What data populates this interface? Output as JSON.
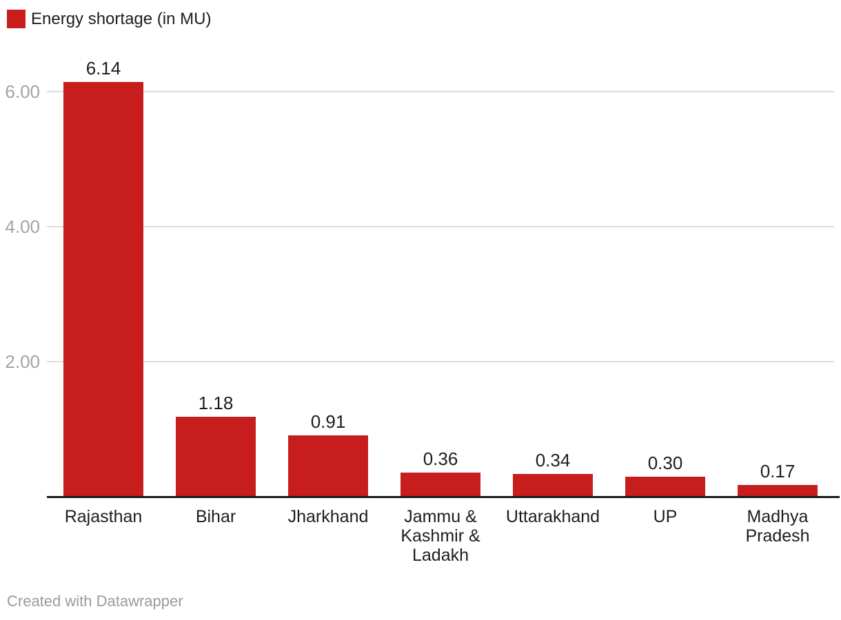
{
  "legend": {
    "swatch_color": "#c71e1d",
    "label": "Energy shortage (in MU)"
  },
  "footer": {
    "credit": "Created with Datawrapper"
  },
  "chart_data": {
    "type": "bar",
    "title": "Energy shortage (in MU)",
    "categories": [
      "Rajasthan",
      "Bihar",
      "Jharkhand",
      "Jammu & Kashmir & Ladakh",
      "Uttarakhand",
      "UP",
      "Madhya Pradesh"
    ],
    "values": [
      6.14,
      1.18,
      0.91,
      0.36,
      0.34,
      0.3,
      0.17
    ],
    "value_labels": [
      "6.14",
      "1.18",
      "0.91",
      "0.36",
      "0.34",
      "0.30",
      "0.17"
    ],
    "bar_color": "#c71e1d",
    "label_color": "#1d1d1d",
    "axis_tick_color": "#a3a3a3",
    "gridline_color": "#dddddd",
    "baseline_color": "#1a1a1a",
    "xlabel": "",
    "ylabel": "",
    "ylim": [
      0,
      6.5
    ],
    "yticks": [
      2,
      4,
      6
    ],
    "ytick_labels": [
      "2.00",
      "4.00",
      "6.00"
    ],
    "grid": true,
    "legend_position": "top-left"
  }
}
